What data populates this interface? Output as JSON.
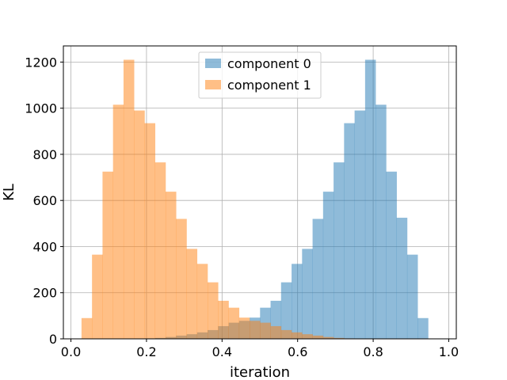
{
  "chart_data": {
    "type": "bar",
    "xlabel": "iteration",
    "ylabel": "KL",
    "xlim": [
      -0.02,
      1.02
    ],
    "ylim": [
      0,
      1270
    ],
    "xticks": [
      0.0,
      0.2,
      0.4,
      0.6,
      0.8,
      1.0
    ],
    "xtick_labels": [
      "0.0",
      "0.2",
      "0.4",
      "0.6",
      "0.8",
      "1.0"
    ],
    "yticks": [
      0,
      200,
      400,
      600,
      800,
      1000,
      1200
    ],
    "ytick_labels": [
      "0",
      "200",
      "400",
      "600",
      "800",
      "1000",
      "1200"
    ],
    "grid": true,
    "legend_position": "upper-center",
    "bin_edges": [
      0.028,
      0.0558,
      0.0836,
      0.1114,
      0.1392,
      0.167,
      0.1948,
      0.2226,
      0.2504,
      0.2782,
      0.306,
      0.3338,
      0.3616,
      0.3894,
      0.4172,
      0.445,
      0.4728,
      0.5006,
      0.5284,
      0.5562,
      0.584,
      0.6118,
      0.6396,
      0.6674,
      0.6952,
      0.723,
      0.7508,
      0.7786,
      0.8064,
      0.8342,
      0.862,
      0.8898,
      0.9176,
      0.9454,
      0.9732
    ],
    "series": [
      {
        "name": "component 0",
        "color": "#1f77b4",
        "alpha": 0.5,
        "values": [
          0,
          0,
          0,
          0,
          0,
          0,
          2,
          4,
          8,
          14,
          20,
          28,
          38,
          55,
          70,
          78,
          92,
          135,
          165,
          245,
          325,
          390,
          520,
          638,
          765,
          935,
          990,
          1210,
          1015,
          725,
          525,
          365,
          90,
          0
        ]
      },
      {
        "name": "component 1",
        "color": "#ff7f0e",
        "alpha": 0.5,
        "values": [
          90,
          365,
          725,
          1015,
          1210,
          990,
          935,
          765,
          638,
          520,
          390,
          325,
          245,
          165,
          135,
          92,
          78,
          70,
          55,
          38,
          28,
          20,
          14,
          8,
          4,
          2,
          0,
          0,
          0,
          0,
          0,
          0,
          0,
          0
        ]
      }
    ]
  }
}
